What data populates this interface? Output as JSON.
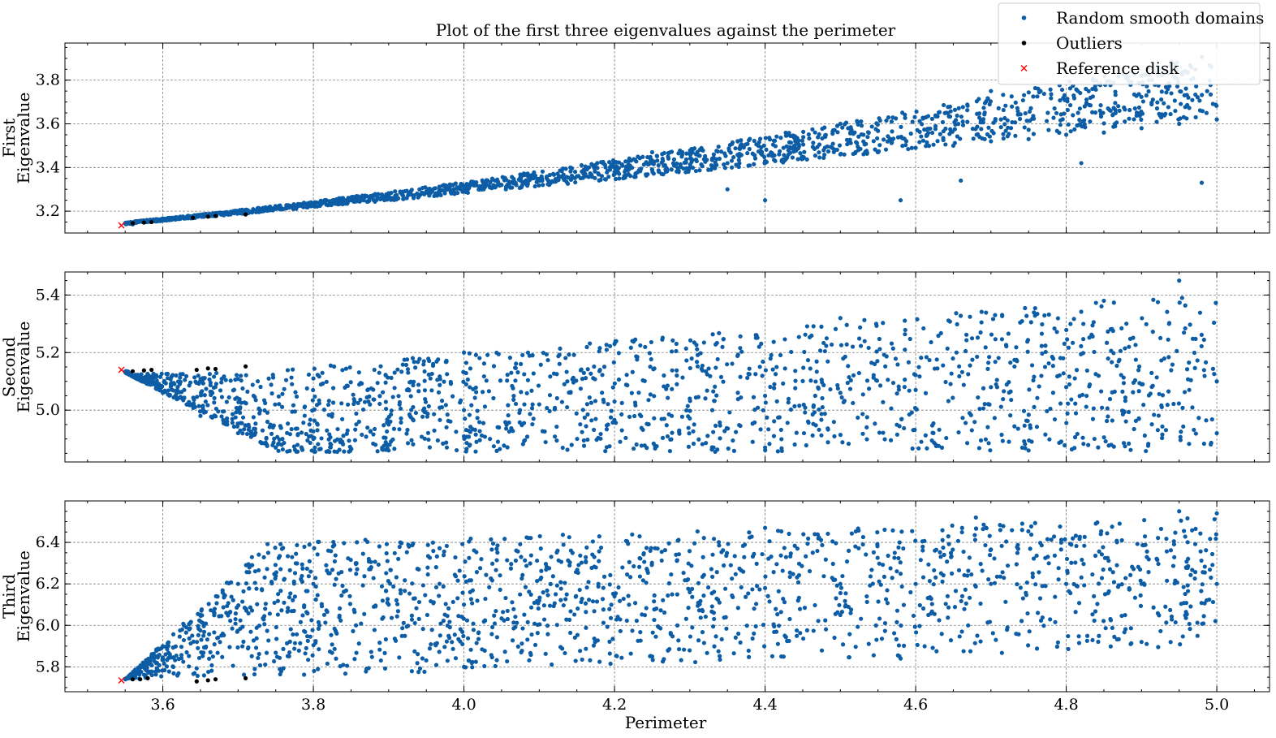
{
  "chart_data": [
    {
      "type": "scatter",
      "panel": "first",
      "title": "Plot of the first three eigenvalues against the perimeter",
      "ylabel": [
        "First",
        "Eigenvalue"
      ],
      "xlabel": "",
      "xlim": [
        3.47,
        5.07
      ],
      "ylim": [
        3.1,
        3.97
      ],
      "xticks": [
        3.6,
        3.8,
        4.0,
        4.2,
        4.4,
        4.6,
        4.8,
        5.0
      ],
      "xtick_labels": [],
      "yticks": [
        3.2,
        3.4,
        3.6,
        3.8
      ],
      "ytick_labels": [
        "3.2",
        "3.4",
        "3.6",
        "3.8"
      ],
      "grid": true,
      "series": [
        {
          "name": "Random smooth domains",
          "color": "#0C5DA5",
          "marker": "dot",
          "points": [
            [
              3.56,
              3.14
            ],
            [
              3.6,
              3.16
            ],
            [
              3.65,
              3.18
            ],
            [
              3.7,
              3.2
            ],
            [
              3.75,
              3.215
            ],
            [
              3.8,
              3.235
            ],
            [
              3.85,
              3.25
            ],
            [
              3.9,
              3.27
            ],
            [
              3.95,
              3.29
            ],
            [
              4.0,
              3.3
            ],
            [
              4.05,
              3.32
            ],
            [
              4.1,
              3.34
            ],
            [
              4.15,
              3.36
            ],
            [
              4.2,
              3.38
            ],
            [
              4.25,
              3.39
            ],
            [
              4.3,
              3.4
            ],
            [
              4.35,
              3.42
            ],
            [
              4.4,
              3.43
            ],
            [
              4.45,
              3.44
            ],
            [
              4.5,
              3.46
            ],
            [
              4.55,
              3.47
            ],
            [
              4.6,
              3.49
            ],
            [
              4.65,
              3.5
            ],
            [
              4.7,
              3.52
            ],
            [
              4.75,
              3.53
            ],
            [
              4.8,
              3.55
            ],
            [
              4.85,
              3.56
            ],
            [
              4.9,
              3.58
            ],
            [
              4.95,
              3.6
            ],
            [
              5.0,
              3.62
            ],
            [
              4.4,
              3.25
            ],
            [
              4.58,
              3.25
            ],
            [
              4.9,
              3.82
            ],
            [
              4.7,
              3.75
            ],
            [
              4.5,
              3.6
            ],
            [
              4.98,
              3.33
            ],
            [
              4.35,
              3.3
            ],
            [
              4.66,
              3.34
            ],
            [
              4.82,
              3.42
            ],
            [
              4.25,
              3.47
            ]
          ]
        },
        {
          "name": "Outliers",
          "color": "#000000",
          "marker": "dot",
          "points": [
            [
              3.56,
              3.145
            ],
            [
              3.575,
              3.148
            ],
            [
              3.585,
              3.15
            ],
            [
              3.64,
              3.17
            ],
            [
              3.66,
              3.175
            ],
            [
              3.67,
              3.178
            ],
            [
              3.71,
              3.185
            ]
          ]
        },
        {
          "name": "Reference disk",
          "color": "#FF0000",
          "marker": "x",
          "points": [
            [
              3.545,
              3.135
            ]
          ]
        }
      ]
    },
    {
      "type": "scatter",
      "panel": "second",
      "title": "",
      "ylabel": [
        "Second",
        "Eigenvalue"
      ],
      "xlabel": "",
      "xlim": [
        3.47,
        5.07
      ],
      "ylim": [
        4.82,
        5.48
      ],
      "xticks": [
        3.6,
        3.8,
        4.0,
        4.2,
        4.4,
        4.6,
        4.8,
        5.0
      ],
      "xtick_labels": [],
      "yticks": [
        5.0,
        5.2,
        5.4
      ],
      "ytick_labels": [
        "5.0",
        "5.2",
        "5.4"
      ],
      "grid": true,
      "series": [
        {
          "name": "Random smooth domains",
          "color": "#0C5DA5",
          "marker": "dot",
          "points": [
            [
              3.56,
              5.12
            ],
            [
              3.6,
              5.06
            ],
            [
              3.65,
              4.98
            ],
            [
              3.7,
              4.92
            ],
            [
              3.75,
              4.87
            ],
            [
              3.8,
              4.9
            ],
            [
              3.9,
              4.95
            ],
            [
              4.0,
              5.0
            ],
            [
              4.1,
              5.02
            ],
            [
              4.2,
              5.03
            ],
            [
              4.3,
              5.04
            ],
            [
              4.4,
              5.05
            ],
            [
              4.5,
              5.06
            ],
            [
              4.6,
              5.07
            ],
            [
              4.7,
              5.08
            ],
            [
              4.8,
              5.08
            ],
            [
              4.9,
              5.09
            ],
            [
              5.0,
              5.1
            ],
            [
              4.95,
              5.45
            ],
            [
              4.85,
              5.38
            ],
            [
              4.5,
              5.32
            ],
            [
              4.2,
              5.23
            ],
            [
              4.0,
              5.2
            ],
            [
              3.9,
              4.86
            ],
            [
              4.4,
              4.87
            ],
            [
              4.75,
              4.86
            ],
            [
              5.0,
              4.92
            ]
          ]
        },
        {
          "name": "Outliers",
          "color": "#000000",
          "marker": "dot",
          "points": [
            [
              3.56,
              5.135
            ],
            [
              3.575,
              5.138
            ],
            [
              3.585,
              5.14
            ],
            [
              3.645,
              5.14
            ],
            [
              3.66,
              5.145
            ],
            [
              3.67,
              5.143
            ],
            [
              3.71,
              5.152
            ]
          ]
        },
        {
          "name": "Reference disk",
          "color": "#FF0000",
          "marker": "x",
          "points": [
            [
              3.545,
              5.14
            ]
          ]
        }
      ]
    },
    {
      "type": "scatter",
      "panel": "third",
      "title": "",
      "ylabel": [
        "Third",
        "Eigenvalue"
      ],
      "xlabel": "Perimeter",
      "xlim": [
        3.47,
        5.07
      ],
      "ylim": [
        5.68,
        6.6
      ],
      "xticks": [
        3.6,
        3.8,
        4.0,
        4.2,
        4.4,
        4.6,
        4.8,
        5.0
      ],
      "xtick_labels": [
        "3.6",
        "3.8",
        "4.0",
        "4.2",
        "4.4",
        "4.6",
        "4.8",
        "5.0"
      ],
      "yticks": [
        5.8,
        6.0,
        6.2,
        6.4
      ],
      "ytick_labels": [
        "5.8",
        "6.0",
        "6.2",
        "6.4"
      ],
      "grid": true,
      "series": [
        {
          "name": "Random smooth domains",
          "color": "#0C5DA5",
          "marker": "dot",
          "points": [
            [
              3.56,
              5.76
            ],
            [
              3.6,
              5.9
            ],
            [
              3.65,
              6.05
            ],
            [
              3.7,
              6.2
            ],
            [
              3.74,
              6.35
            ],
            [
              3.8,
              6.2
            ],
            [
              3.9,
              6.1
            ],
            [
              4.0,
              6.1
            ],
            [
              4.1,
              6.12
            ],
            [
              4.2,
              6.14
            ],
            [
              4.3,
              6.16
            ],
            [
              4.4,
              6.18
            ],
            [
              4.5,
              6.2
            ],
            [
              4.6,
              6.2
            ],
            [
              4.7,
              6.2
            ],
            [
              4.8,
              6.2
            ],
            [
              4.9,
              6.2
            ],
            [
              5.0,
              6.2
            ],
            [
              4.95,
              6.55
            ],
            [
              5.0,
              6.54
            ],
            [
              4.68,
              6.52
            ],
            [
              4.58,
              5.84
            ],
            [
              4.0,
              5.8
            ],
            [
              4.25,
              5.85
            ],
            [
              4.9,
              5.92
            ],
            [
              4.4,
              6.47
            ]
          ]
        },
        {
          "name": "Outliers",
          "color": "#000000",
          "marker": "dot",
          "points": [
            [
              3.56,
              5.74
            ],
            [
              3.57,
              5.74
            ],
            [
              3.58,
              5.745
            ],
            [
              3.645,
              5.73
            ],
            [
              3.66,
              5.735
            ],
            [
              3.67,
              5.74
            ],
            [
              3.71,
              5.745
            ]
          ]
        },
        {
          "name": "Reference disk",
          "color": "#FF0000",
          "marker": "x",
          "points": [
            [
              3.545,
              5.735
            ]
          ]
        }
      ]
    }
  ],
  "legend": {
    "placement": "top-right",
    "entries": [
      {
        "label": "Random smooth domains",
        "color": "#0C5DA5",
        "marker": "dot"
      },
      {
        "label": "Outliers",
        "color": "#000000",
        "marker": "dot"
      },
      {
        "label": "Reference disk",
        "color": "#FF0000",
        "marker": "x"
      }
    ]
  }
}
